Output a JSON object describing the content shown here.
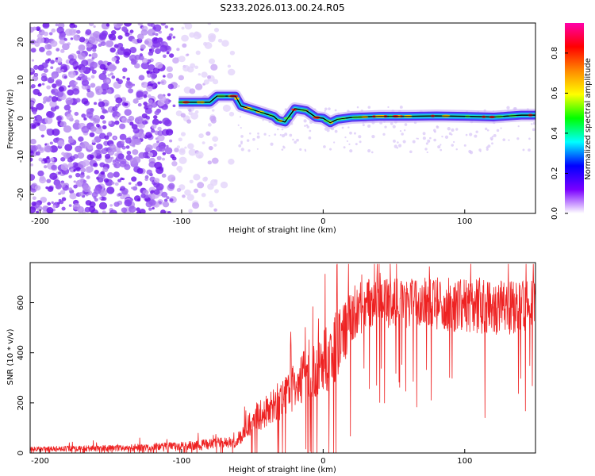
{
  "title": "S233.2026.013.00.24.R05",
  "chart_data": [
    {
      "type": "heatmap",
      "xlabel": "Height of straight line (km)",
      "ylabel": "Frequency (Hz)",
      "xlim": [
        -207,
        150
      ],
      "ylim": [
        -25,
        25
      ],
      "xticks": [
        -200,
        -100,
        0,
        100
      ],
      "xtick_labels": [
        "-200",
        "-100",
        "0",
        "100"
      ],
      "yticks": [
        -20,
        -10,
        0,
        10,
        20
      ],
      "ytick_labels": [
        "-20",
        "-10",
        "0",
        "10",
        "20"
      ],
      "ridge": {
        "name": "Frequency ridge",
        "x": [
          -102,
          -80,
          -75,
          -62,
          -58,
          -35,
          -32,
          -27,
          -20,
          -12,
          -5,
          0,
          5,
          10,
          20,
          40,
          60,
          80,
          100,
          120,
          140,
          150
        ],
        "freq": [
          4.2,
          4.2,
          5.8,
          5.8,
          3.2,
          0.5,
          -0.5,
          -1.0,
          2.5,
          2.0,
          0.2,
          0.0,
          -1.2,
          -0.3,
          0.2,
          0.5,
          0.5,
          0.6,
          0.5,
          0.3,
          0.8,
          0.8
        ]
      },
      "noise_region_x": [
        -207,
        -60
      ],
      "colorbar": {
        "label": "Normalized spectral amplitude",
        "range": [
          0,
          0.95
        ],
        "ticks": [
          0.0,
          0.2,
          0.4,
          0.6,
          0.8
        ],
        "tick_labels": [
          "0.0",
          "0.2",
          "0.4",
          "0.6",
          "0.8"
        ],
        "colormap": [
          "#ffffff",
          "#7a00ff",
          "#0000ff",
          "#00ffff",
          "#00ff00",
          "#ffff00",
          "#ff8800",
          "#ff0000",
          "#ff00aa"
        ]
      }
    },
    {
      "type": "line",
      "xlabel": "Height of straight line (km)",
      "ylabel": "SNR (10 * v/v)",
      "xlim": [
        -207,
        150
      ],
      "ylim": [
        0,
        760
      ],
      "xticks": [
        -200,
        -100,
        0,
        100
      ],
      "xtick_labels": [
        "-200",
        "-100",
        "0",
        "100"
      ],
      "yticks": [
        0,
        200,
        400,
        600
      ],
      "ytick_labels": [
        "0",
        "200",
        "400",
        "600"
      ],
      "series": [
        {
          "name": "SNR",
          "color": "#ee2222",
          "envelope_x": [
            -207,
            -150,
            -100,
            -70,
            -62,
            -50,
            -30,
            -15,
            0,
            10,
            20,
            30,
            60,
            100,
            130,
            150
          ],
          "envelope_mean": [
            18,
            22,
            30,
            45,
            40,
            140,
            220,
            320,
            380,
            460,
            560,
            620,
            620,
            610,
            600,
            610
          ],
          "envelope_spread": [
            15,
            20,
            30,
            35,
            30,
            80,
            120,
            160,
            200,
            220,
            200,
            150,
            160,
            170,
            170,
            150
          ]
        }
      ]
    }
  ]
}
